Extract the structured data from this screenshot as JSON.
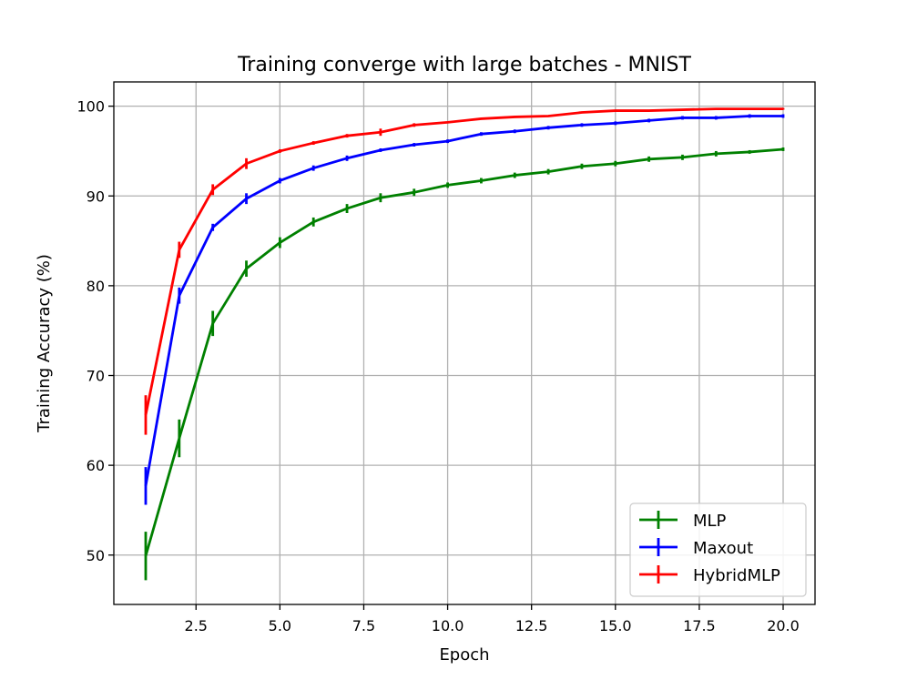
{
  "chart_data": {
    "type": "line",
    "title": "Training converge with large batches - MNIST",
    "xlabel": "Epoch",
    "ylabel": "Training Accuracy (%)",
    "xlim": [
      0.05,
      20.95
    ],
    "ylim": [
      44.5,
      102.7
    ],
    "x_ticks": [
      2.5,
      5.0,
      7.5,
      10.0,
      12.5,
      15.0,
      17.5,
      20.0
    ],
    "x_tick_labels": [
      "2.5",
      "5.0",
      "7.5",
      "10.0",
      "12.5",
      "15.0",
      "17.5",
      "20.0"
    ],
    "y_ticks": [
      50,
      60,
      70,
      80,
      90,
      100
    ],
    "y_tick_labels": [
      "50",
      "60",
      "70",
      "80",
      "90",
      "100"
    ],
    "grid": true,
    "legend_position": "lower-right",
    "x": [
      1,
      2,
      3,
      4,
      5,
      6,
      7,
      8,
      9,
      10,
      11,
      12,
      13,
      14,
      15,
      16,
      17,
      18,
      19,
      20
    ],
    "series": [
      {
        "name": "MLP",
        "color": "#008000",
        "values": [
          49.9,
          63.0,
          75.8,
          81.9,
          84.8,
          87.1,
          88.6,
          89.8,
          90.4,
          91.2,
          91.7,
          92.3,
          92.7,
          93.3,
          93.6,
          94.1,
          94.3,
          94.7,
          94.9,
          95.2
        ],
        "errors": [
          2.7,
          2.1,
          1.4,
          0.9,
          0.6,
          0.5,
          0.5,
          0.5,
          0.4,
          0.3,
          0.3,
          0.3,
          0.3,
          0.3,
          0.3,
          0.3,
          0.3,
          0.3,
          0.2,
          0.2
        ]
      },
      {
        "name": "Maxout",
        "color": "#0000ff",
        "values": [
          57.7,
          78.9,
          86.5,
          89.7,
          91.7,
          93.1,
          94.2,
          95.1,
          95.7,
          96.1,
          96.9,
          97.2,
          97.6,
          97.9,
          98.1,
          98.4,
          98.7,
          98.7,
          98.9,
          98.9
        ],
        "errors": [
          2.1,
          0.9,
          0.4,
          0.6,
          0.3,
          0.3,
          0.3,
          0.2,
          0.2,
          0.2,
          0.2,
          0.2,
          0.2,
          0.2,
          0.2,
          0.2,
          0.2,
          0.2,
          0.2,
          0.2
        ]
      },
      {
        "name": "HybridMLP",
        "color": "#ff0000",
        "values": [
          65.6,
          84.0,
          90.7,
          93.6,
          95.0,
          95.9,
          96.7,
          97.1,
          97.9,
          98.2,
          98.6,
          98.8,
          98.9,
          99.3,
          99.5,
          99.5,
          99.6,
          99.7,
          99.7,
          99.7
        ],
        "errors": [
          2.2,
          0.9,
          0.6,
          0.6,
          0.2,
          0.2,
          0.2,
          0.4,
          0.2,
          0.1,
          0.1,
          0.1,
          0.1,
          0.1,
          0.1,
          0.1,
          0.1,
          0.1,
          0.1,
          0.1
        ]
      }
    ]
  }
}
